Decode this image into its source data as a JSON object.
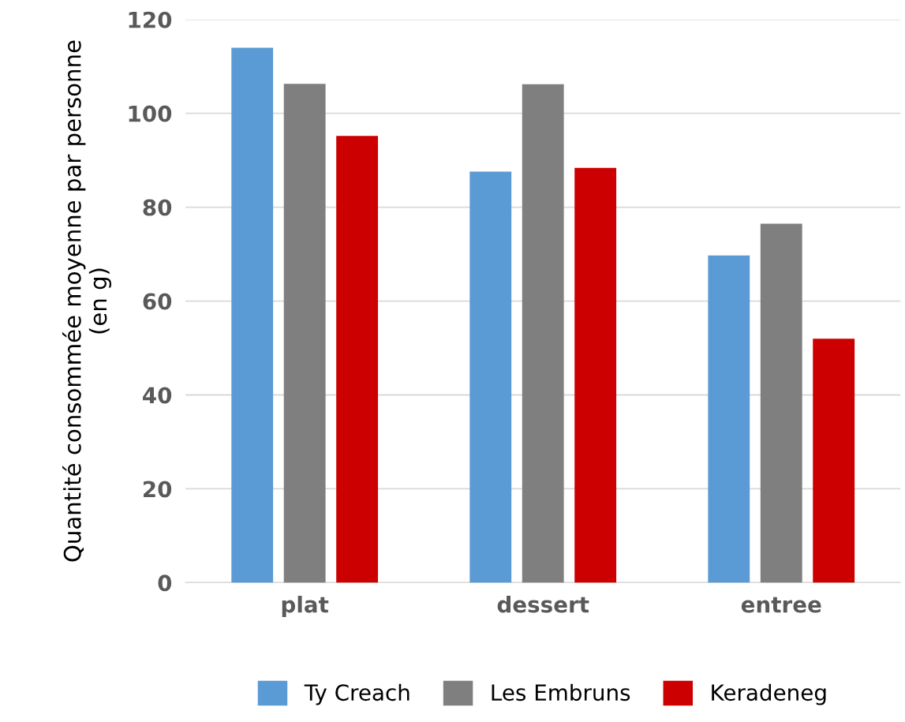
{
  "chart_data": {
    "type": "bar",
    "ylabel": "Quantité consommée moyenne par personne\n(en g)",
    "categories": [
      "plat",
      "dessert",
      "entree"
    ],
    "series": [
      {
        "name": "Ty Creach",
        "color": "#5b9bd5",
        "values": [
          114,
          87.6,
          69.7
        ]
      },
      {
        "name": "Les Embruns",
        "color": "#7f7f7f",
        "values": [
          106.3,
          106.2,
          76.5
        ]
      },
      {
        "name": "Keradeneg",
        "color": "#cc0000",
        "values": [
          95.2,
          88.4,
          52.0
        ]
      }
    ],
    "ylim": [
      0,
      120
    ],
    "yticks": [
      0,
      20,
      40,
      60,
      80,
      100,
      120
    ],
    "grid": "y",
    "legend": "bottom"
  }
}
